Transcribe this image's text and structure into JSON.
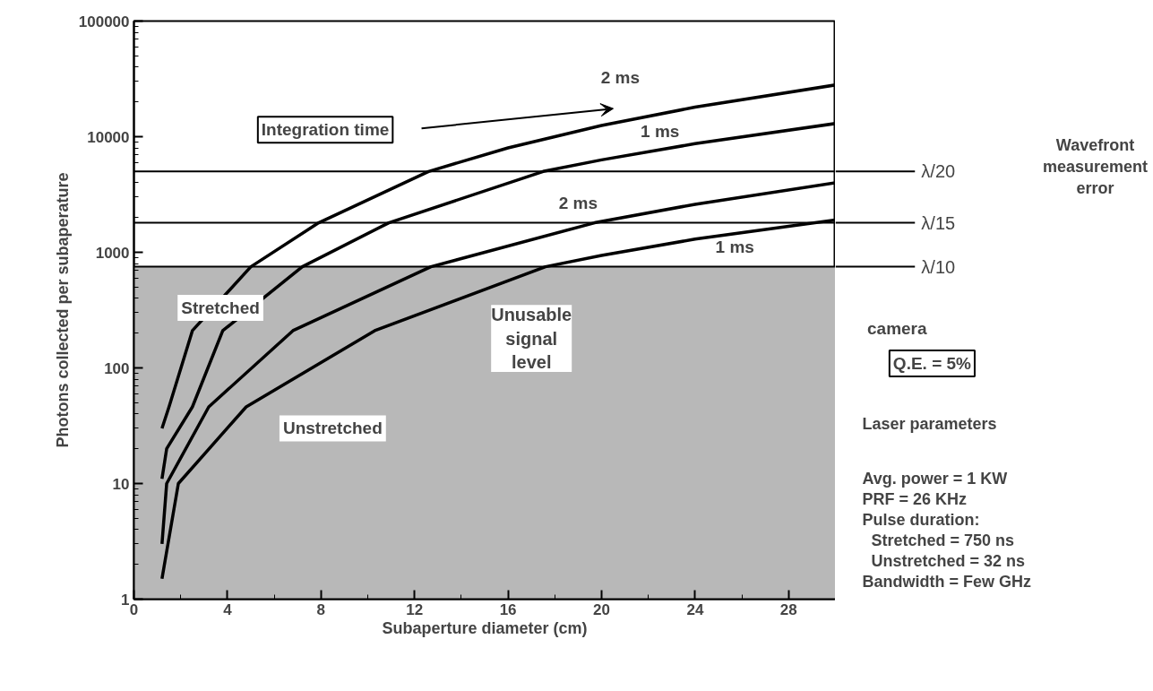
{
  "chart_data": {
    "type": "line",
    "xlabel": "Subaperture diameter (cm)",
    "ylabel": "Photons collected per subaperature",
    "xlim": [
      0,
      30
    ],
    "xticks": [
      0,
      4,
      8,
      12,
      16,
      20,
      24,
      28
    ],
    "ylim": [
      1,
      100000
    ],
    "yticks": [
      1,
      10,
      100,
      1000,
      10000,
      100000
    ],
    "log": "y",
    "grid": false,
    "legend": false,
    "marker": "none",
    "line_style": "solid",
    "series": [
      {
        "name": "2 ms",
        "color": "#000000",
        "x": [
          1.2,
          1.5,
          2.5,
          5.0,
          7.9,
          12.6,
          16,
          20,
          24,
          30
        ],
        "values": [
          30,
          46,
          210,
          750,
          1800,
          5000,
          8000,
          12500,
          18000,
          28000
        ]
      },
      {
        "name": "1 ms",
        "color": "#000000",
        "x": [
          1.2,
          1.4,
          2.5,
          3.8,
          7.2,
          10.9,
          17.5,
          20,
          24,
          30
        ],
        "values": [
          11,
          20,
          46,
          210,
          750,
          1800,
          5000,
          6300,
          8700,
          13000
        ]
      },
      {
        "name": "2 ms",
        "color": "#000000",
        "x": [
          1.2,
          1.4,
          3.2,
          6.8,
          12.7,
          19.7,
          24,
          30
        ],
        "values": [
          3,
          10,
          46,
          210,
          750,
          1800,
          2600,
          4000
        ]
      },
      {
        "name": "1 ms",
        "color": "#000000",
        "x": [
          1.2,
          1.9,
          4.8,
          10.3,
          17.6,
          20,
          24,
          28,
          30
        ],
        "values": [
          1.5,
          10,
          46,
          210,
          750,
          940,
          1300,
          1680,
          1900
        ]
      }
    ],
    "ref_lines": [
      {
        "axis": "y",
        "value": 5000,
        "label": "λ/20",
        "color": "#000000"
      },
      {
        "axis": "y",
        "value": 1800,
        "label": "λ/15",
        "color": "#000000"
      },
      {
        "axis": "y",
        "value": 750,
        "label": "λ/10",
        "color": "#000000"
      }
    ],
    "bands": [
      {
        "axis": "y",
        "from": 1,
        "to": 750,
        "label": "Unusable signal level",
        "color": "#b8b8b8"
      }
    ],
    "annotations": [
      "Integration time",
      "Stretched",
      "Unstretched",
      "Wavefront measurement error",
      "camera",
      "Q.E. = 5%",
      "Laser parameters",
      "Avg. power = 1 KW",
      "PRF = 26 KHz",
      "Pulse duration:",
      "  Stretched = 750 ns",
      "  Unstretched = 32 ns",
      "Bandwidth = Few GHz"
    ]
  }
}
